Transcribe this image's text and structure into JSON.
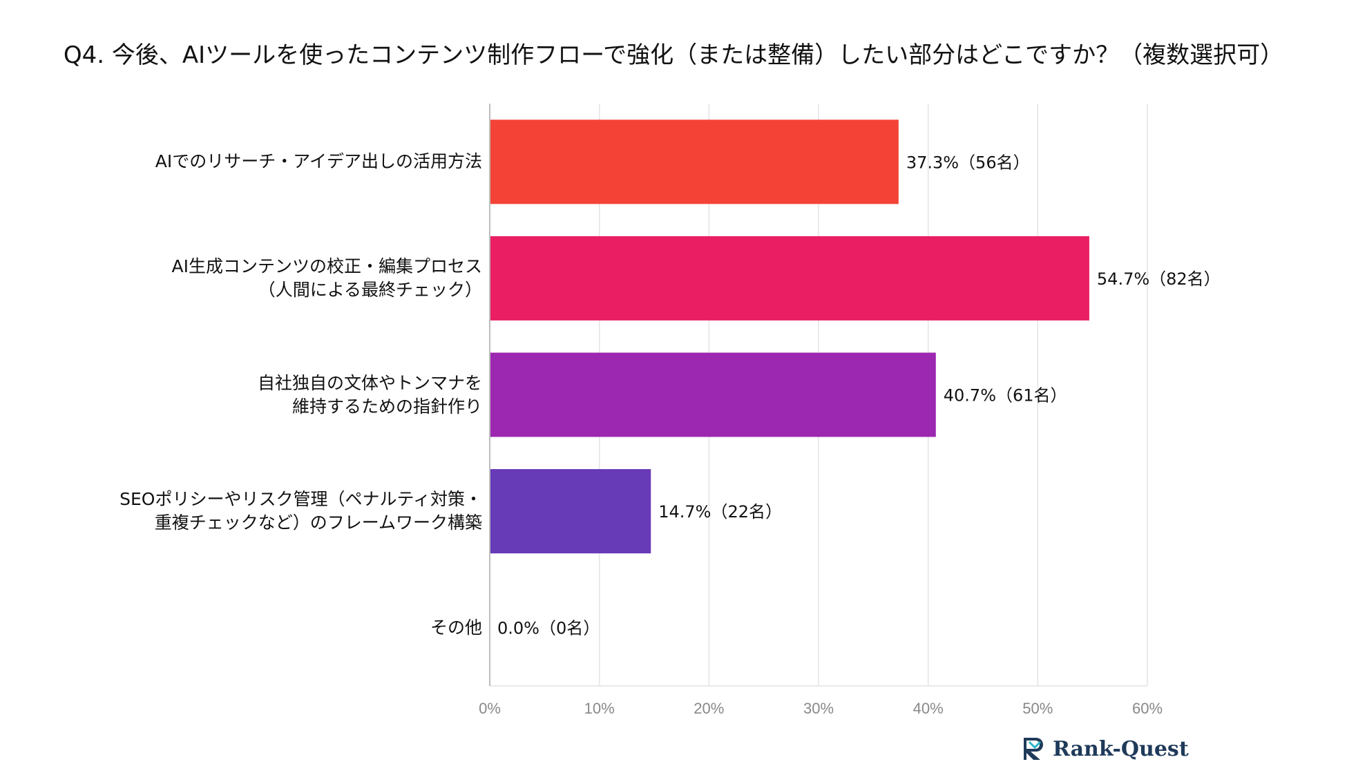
{
  "chart_data": {
    "type": "bar",
    "orientation": "horizontal",
    "title": "Q4. 今後、AIツールを使ったコンテンツ制作フローで強化（または整備）したい部分はどこですか？（複数選択可）",
    "categories": [
      [
        "AIでのリサーチ・アイデア出しの活用方法"
      ],
      [
        "AI生成コンテンツの校正・編集プロセス",
        "（人間による最終チェック）"
      ],
      [
        "自社独自の文体やトンマナを",
        "維持するための指針作り"
      ],
      [
        "SEOポリシーやリスク管理（ペナルティ対策・",
        "重複チェックなど）のフレームワーク構築"
      ],
      [
        "その他"
      ]
    ],
    "values": [
      37.3,
      54.7,
      40.7,
      14.7,
      0.0
    ],
    "data_labels": [
      "37.3%（56名）",
      "54.7%（82名）",
      "40.7%（61名）",
      "14.7%（22名）",
      "0.0%（0名）"
    ],
    "colors": [
      "#f44336",
      "#e91e63",
      "#9c27b0",
      "#673ab7",
      "#3f51b5"
    ],
    "xlim": [
      0,
      60
    ],
    "xticks": [
      "0%",
      "10%",
      "20%",
      "30%",
      "40%",
      "50%",
      "60%"
    ],
    "grid": true
  },
  "brand": {
    "logo_text": "Rank-Quest",
    "logo_icon": "rank-quest-logo-icon"
  }
}
